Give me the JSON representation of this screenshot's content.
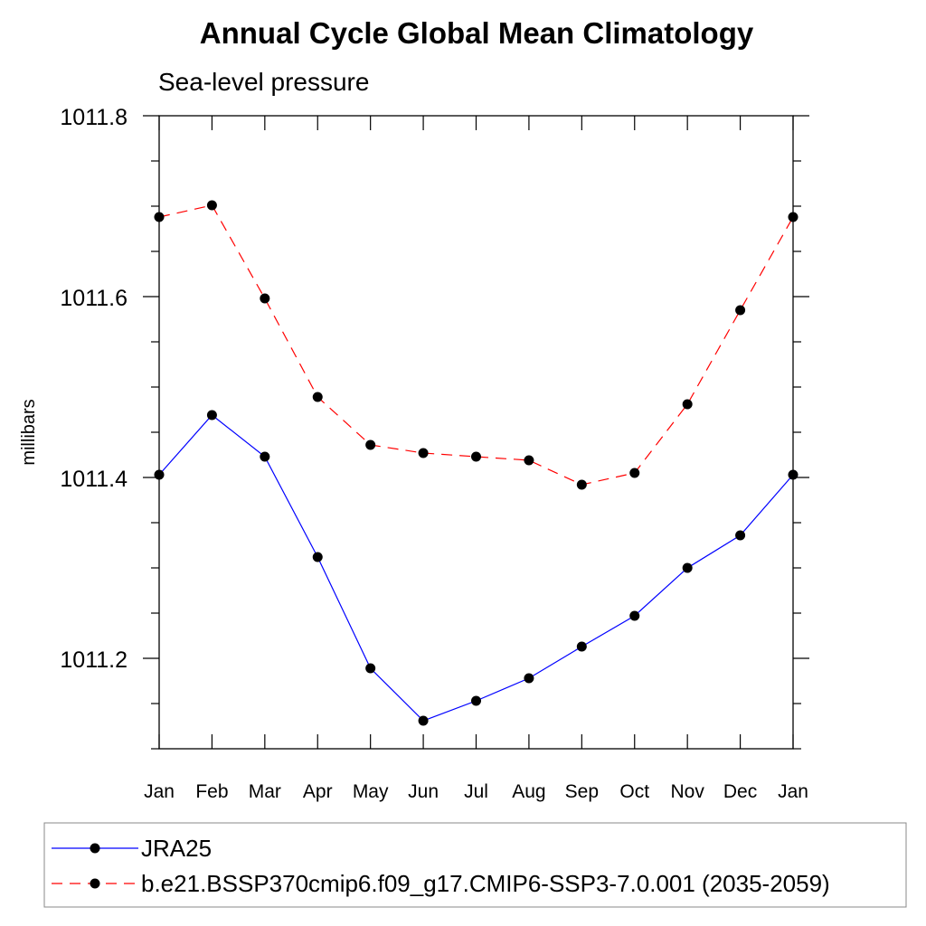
{
  "chart_data": {
    "type": "line",
    "title": "Annual Cycle Global Mean Climatology",
    "subtitle": "Sea-level pressure",
    "ylabel": "millibars",
    "xlabel": "",
    "categories": [
      "Jan",
      "Feb",
      "Mar",
      "Apr",
      "May",
      "Jun",
      "Jul",
      "Aug",
      "Sep",
      "Oct",
      "Nov",
      "Dec",
      "Jan"
    ],
    "ylim": [
      1011.1,
      1011.8
    ],
    "yticks": [
      1011.2,
      1011.4,
      1011.6,
      1011.8
    ],
    "ytick_labels": [
      "1011.2",
      "1011.4",
      "1011.6",
      "1011.8"
    ],
    "grid": false,
    "legend_position": "bottom",
    "series": [
      {
        "name": "JRA25",
        "color": "#0000ff",
        "dash": "solid",
        "values": [
          1011.403,
          1011.469,
          1011.423,
          1011.312,
          1011.189,
          1011.131,
          1011.153,
          1011.178,
          1011.213,
          1011.247,
          1011.3,
          1011.336,
          1011.403
        ]
      },
      {
        "name": "b.e21.BSSP370cmip6.f09_g17.CMIP6-SSP3-7.0.001 (2035-2059)",
        "color": "#ff0000",
        "dash": "dashed",
        "values": [
          1011.688,
          1011.701,
          1011.598,
          1011.489,
          1011.436,
          1011.427,
          1011.423,
          1011.419,
          1011.392,
          1011.405,
          1011.481,
          1011.585,
          1011.688
        ]
      }
    ]
  }
}
